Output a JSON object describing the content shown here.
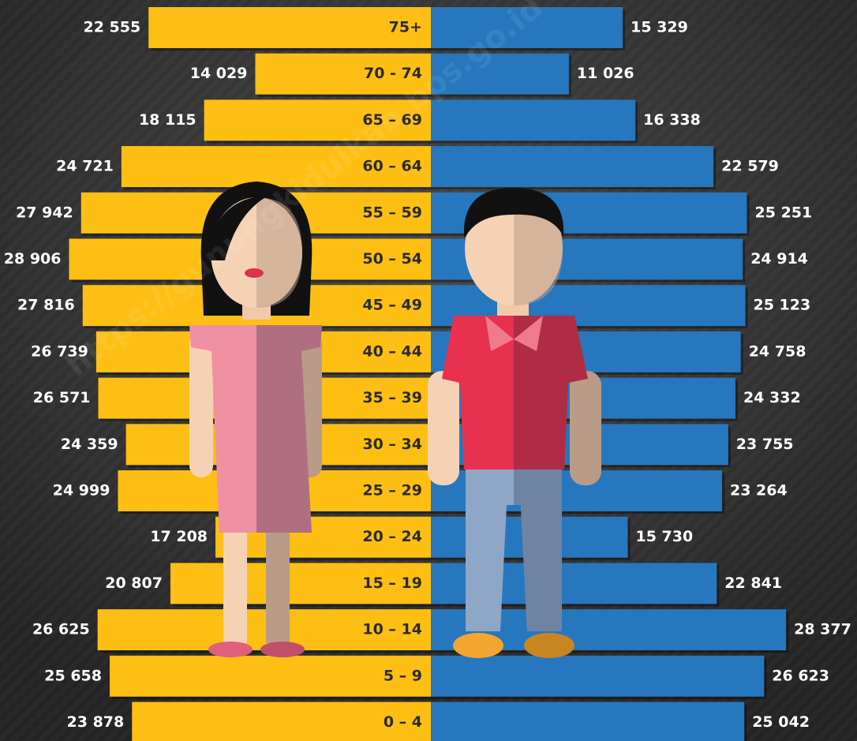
{
  "chart_data": {
    "type": "population-pyramid",
    "watermark": "https://gunungkidulkab.bps.go.id",
    "categories": [
      "75+",
      "70 - 74",
      "65 – 69",
      "60 – 64",
      "55 – 59",
      "50 – 54",
      "45 – 49",
      "40 – 44",
      "35 – 39",
      "30 – 34",
      "25 – 29",
      "20 – 24",
      "15 – 19",
      "10 – 14",
      "5 – 9",
      "0 – 4"
    ],
    "xlim": [
      0,
      29000
    ],
    "series": [
      {
        "color": "#fdbf14",
        "side": "left",
        "values": [
          22555,
          14029,
          18115,
          24721,
          27942,
          28906,
          27816,
          26739,
          26571,
          24359,
          24999,
          17208,
          20807,
          26625,
          25658,
          23878
        ],
        "value_labels": [
          "22 555",
          "14 029",
          "18 115",
          "24 721",
          "27 942",
          "28 906",
          "27 816",
          "26 739",
          "26 571",
          "24 359",
          "24 999",
          "17 208",
          "20 807",
          "26 625",
          "25 658",
          "23 878"
        ]
      },
      {
        "color": "#2677be",
        "side": "right",
        "values": [
          15329,
          11026,
          16338,
          22579,
          25251,
          24914,
          25123,
          24758,
          24332,
          23755,
          23264,
          15730,
          22841,
          28377,
          26623,
          25042
        ],
        "value_labels": [
          "15 329",
          "11 026",
          "16 338",
          "22 579",
          "25 251",
          "24 914",
          "25 123",
          "24 758",
          "24 332",
          "23 755",
          "23 264",
          "15 730",
          "22 841",
          "28 377",
          "26 623",
          "25 042"
        ]
      }
    ]
  }
}
